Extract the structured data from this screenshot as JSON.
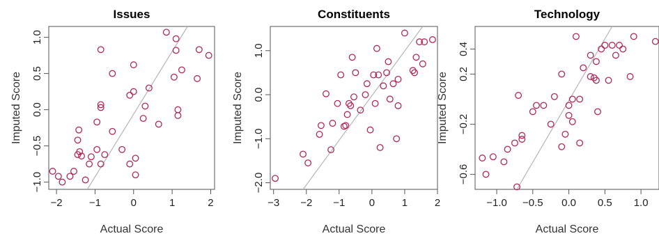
{
  "colors": {
    "points": "#b0285a",
    "fit_line": "#b5b5b5",
    "axis": "#555555"
  },
  "chart_data": [
    {
      "type": "scatter",
      "title": "Issues",
      "xlabel": "Actual Score",
      "ylabel": "Imputed Score",
      "xlim": [
        -2.2,
        2.1
      ],
      "ylim": [
        -1.1,
        1.15
      ],
      "xticks": [
        -2,
        -1,
        0,
        1,
        2
      ],
      "yticks": [
        -1.0,
        -0.5,
        0.0,
        0.5,
        1.0
      ],
      "xtick_labels": [
        "−2",
        "−1",
        "0",
        "1",
        "2"
      ],
      "ytick_labels": [
        "−1.0",
        "−0.5",
        "0.0",
        "0.5",
        "1.0"
      ],
      "fit_line": {
        "x1": -1.2,
        "y1": -1.1,
        "x2": 1.4,
        "y2": 1.15
      },
      "points": [
        [
          -2.1,
          -0.85
        ],
        [
          -1.95,
          -0.92
        ],
        [
          -1.85,
          -1.0
        ],
        [
          -1.65,
          -0.92
        ],
        [
          -1.55,
          -0.85
        ],
        [
          -1.45,
          -0.62
        ],
        [
          -1.4,
          -0.58
        ],
        [
          -1.35,
          -0.64
        ],
        [
          -1.45,
          -0.42
        ],
        [
          -1.42,
          -0.28
        ],
        [
          -1.25,
          -0.97
        ],
        [
          -1.15,
          -0.75
        ],
        [
          -1.1,
          -0.65
        ],
        [
          -0.95,
          -0.55
        ],
        [
          -0.85,
          -0.75
        ],
        [
          -0.85,
          0.07
        ],
        [
          -0.85,
          0.03
        ],
        [
          -0.95,
          -0.17
        ],
        [
          -0.75,
          -0.62
        ],
        [
          -0.55,
          -0.3
        ],
        [
          -0.55,
          0.5
        ],
        [
          -0.85,
          0.83
        ],
        [
          -0.3,
          -0.55
        ],
        [
          -0.1,
          -0.75
        ],
        [
          -0.1,
          0.2
        ],
        [
          0.0,
          0.62
        ],
        [
          0.0,
          0.25
        ],
        [
          0.05,
          -0.67
        ],
        [
          0.05,
          -0.9
        ],
        [
          0.25,
          -0.12
        ],
        [
          0.3,
          0.05
        ],
        [
          0.4,
          0.3
        ],
        [
          0.65,
          -0.2
        ],
        [
          0.85,
          1.07
        ],
        [
          1.05,
          0.45
        ],
        [
          1.1,
          0.82
        ],
        [
          1.1,
          0.98
        ],
        [
          1.15,
          0.0
        ],
        [
          1.15,
          -0.08
        ],
        [
          1.25,
          0.55
        ],
        [
          1.65,
          0.43
        ],
        [
          1.7,
          0.83
        ],
        [
          1.95,
          0.75
        ]
      ]
    },
    {
      "type": "scatter",
      "title": "Constituents",
      "xlabel": "Actual Score",
      "ylabel": "Imputed Score",
      "xlim": [
        -3.1,
        2.0
      ],
      "ylim": [
        -2.15,
        1.55
      ],
      "xticks": [
        -3,
        -2,
        -1,
        0,
        1,
        2
      ],
      "yticks": [
        -2.0,
        -1.0,
        0.0,
        1.0
      ],
      "xtick_labels": [
        "−3",
        "−2",
        "−1",
        "0",
        "1",
        "2"
      ],
      "ytick_labels": [
        "−2.0",
        "−1.0",
        "0.0",
        "1.0"
      ],
      "fit_line": {
        "x1": -2.1,
        "y1": -2.15,
        "x2": 1.55,
        "y2": 1.55
      },
      "points": [
        [
          -2.95,
          -1.9
        ],
        [
          -2.1,
          -1.35
        ],
        [
          -1.95,
          -1.55
        ],
        [
          -1.6,
          -0.9
        ],
        [
          -1.55,
          -0.7
        ],
        [
          -1.4,
          0.02
        ],
        [
          -1.25,
          -1.25
        ],
        [
          -1.2,
          -0.65
        ],
        [
          -1.05,
          -0.2
        ],
        [
          -0.95,
          0.45
        ],
        [
          -0.85,
          -0.72
        ],
        [
          -0.8,
          -0.7
        ],
        [
          -0.75,
          -0.45
        ],
        [
          -0.7,
          -0.2
        ],
        [
          -0.65,
          -0.25
        ],
        [
          -0.6,
          0.85
        ],
        [
          -0.55,
          -0.05
        ],
        [
          -0.5,
          0.5
        ],
        [
          -0.35,
          -0.35
        ],
        [
          -0.2,
          0.0
        ],
        [
          -0.15,
          0.25
        ],
        [
          -0.05,
          -0.8
        ],
        [
          0.05,
          0.45
        ],
        [
          0.1,
          -0.2
        ],
        [
          0.15,
          1.05
        ],
        [
          0.2,
          0.45
        ],
        [
          0.25,
          -1.2
        ],
        [
          0.35,
          0.2
        ],
        [
          0.45,
          0.5
        ],
        [
          0.5,
          0.75
        ],
        [
          0.55,
          -0.1
        ],
        [
          0.65,
          0.25
        ],
        [
          0.75,
          -1.0
        ],
        [
          0.8,
          0.35
        ],
        [
          0.8,
          -0.25
        ],
        [
          1.0,
          1.4
        ],
        [
          1.25,
          0.55
        ],
        [
          1.3,
          0.5
        ],
        [
          1.35,
          0.85
        ],
        [
          1.45,
          1.2
        ],
        [
          1.55,
          0.7
        ],
        [
          1.6,
          1.2
        ],
        [
          1.85,
          1.25
        ]
      ]
    },
    {
      "type": "scatter",
      "title": "Technology",
      "xlabel": "Actual Score",
      "ylabel": "Imputed Score",
      "xlim": [
        -1.3,
        1.25
      ],
      "ylim": [
        -0.72,
        0.58
      ],
      "xticks": [
        -1.0,
        -0.5,
        0.0,
        0.5,
        1.0
      ],
      "yticks": [
        -0.6,
        -0.2,
        0.2,
        0.4
      ],
      "xtick_labels": [
        "−1.0",
        "−0.5",
        "0.0",
        "0.5",
        "1.0"
      ],
      "ytick_labels": [
        "−0.6",
        "−0.2",
        "0.2",
        "0.4"
      ],
      "fit_line": {
        "x1": -0.72,
        "y1": -0.72,
        "x2": 0.6,
        "y2": 0.58
      },
      "points": [
        [
          -1.2,
          -0.47
        ],
        [
          -1.15,
          -0.6
        ],
        [
          -1.05,
          -0.46
        ],
        [
          -0.9,
          -0.5
        ],
        [
          -0.85,
          -0.4
        ],
        [
          -0.75,
          -0.35
        ],
        [
          -0.65,
          -0.32
        ],
        [
          -0.7,
          0.03
        ],
        [
          -0.65,
          -0.29
        ],
        [
          -0.5,
          -0.1
        ],
        [
          -0.45,
          -0.05
        ],
        [
          -0.35,
          -0.05
        ],
        [
          -0.25,
          -0.2
        ],
        [
          -0.2,
          0.02
        ],
        [
          -0.1,
          0.2
        ],
        [
          -0.1,
          -0.38
        ],
        [
          -0.05,
          -0.28
        ],
        [
          0.0,
          -0.13
        ],
        [
          0.0,
          -0.05
        ],
        [
          0.05,
          0.0
        ],
        [
          0.05,
          -0.18
        ],
        [
          0.1,
          0.5
        ],
        [
          0.15,
          -0.35
        ],
        [
          0.15,
          0.0
        ],
        [
          0.2,
          0.25
        ],
        [
          0.3,
          0.35
        ],
        [
          0.3,
          0.18
        ],
        [
          0.35,
          0.17
        ],
        [
          0.38,
          0.3
        ],
        [
          0.38,
          0.15
        ],
        [
          0.4,
          -0.1
        ],
        [
          0.45,
          0.4
        ],
        [
          0.5,
          0.43
        ],
        [
          0.55,
          0.15
        ],
        [
          0.6,
          0.43
        ],
        [
          0.65,
          0.35
        ],
        [
          0.7,
          0.43
        ],
        [
          0.75,
          0.4
        ],
        [
          0.85,
          0.18
        ],
        [
          0.9,
          0.5
        ],
        [
          1.2,
          0.46
        ],
        [
          -0.72,
          -0.7
        ]
      ]
    }
  ]
}
